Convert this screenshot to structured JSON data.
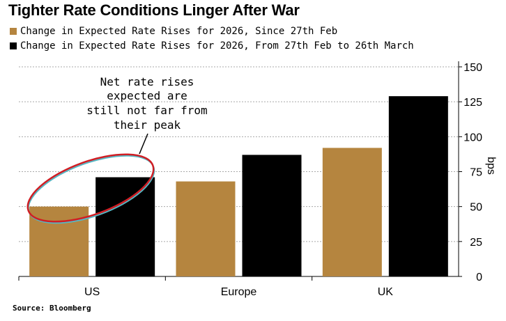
{
  "title": "Tighter Rate Conditions Linger After War",
  "legend": [
    {
      "label": "Change in Expected Rate Rises for 2026, Since 27th Feb",
      "color": "#b5853f"
    },
    {
      "label": "Change in Expected Rate Rises for 2026, From 27th Feb to 26th March",
      "color": "#000000"
    }
  ],
  "source": "Source: Bloomberg",
  "chart_data": {
    "type": "bar",
    "categories": [
      "US",
      "Europe",
      "UK"
    ],
    "series": [
      {
        "name": "Change in Expected Rate Rises for 2026, Since 27th Feb",
        "color": "#b5853f",
        "values": [
          50,
          68,
          92
        ]
      },
      {
        "name": "Change in Expected Rate Rises for 2026, From 27th Feb to 26th March",
        "color": "#000000",
        "values": [
          71,
          87,
          129
        ]
      }
    ],
    "ylabel": "bps",
    "ylim": [
      0,
      150
    ],
    "yticks": [
      0,
      25,
      50,
      75,
      100,
      125,
      150
    ],
    "grid": true,
    "annotation": {
      "lines": [
        "Net rate rises",
        "expected are",
        "still not far from",
        "their peak"
      ],
      "target_category": "US"
    }
  }
}
